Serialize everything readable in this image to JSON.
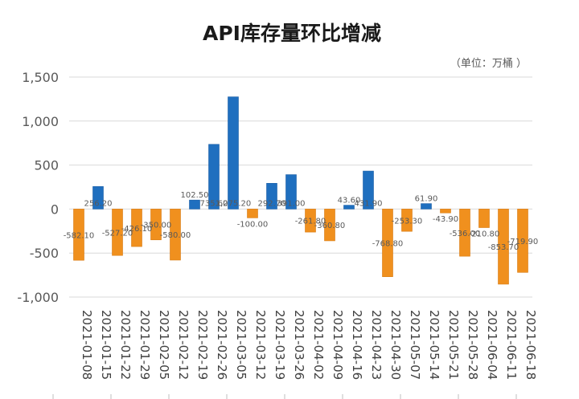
{
  "chart_data": {
    "type": "bar",
    "title": "API库存量环比增减",
    "unit_note": "（单位：万桶 ）",
    "xlabel": "",
    "ylabel": "",
    "ylim": [
      -1000,
      1500
    ],
    "yticks": [
      -1000,
      -500,
      0,
      500,
      1000,
      1500
    ],
    "ytick_labels": [
      "-1,000",
      "-500",
      "0",
      "500",
      "1,000",
      "1,500"
    ],
    "grid": true,
    "legend": "none",
    "colors": {
      "positive": "#1f6fbf",
      "negative": "#f0901e",
      "grid": "#d9d9d9",
      "text": "#595959"
    },
    "categories": [
      "2021-01-08",
      "2021-01-15",
      "2021-01-22",
      "2021-01-29",
      "2021-02-05",
      "2021-02-12",
      "2021-02-19",
      "2021-02-26",
      "2021-03-05",
      "2021-03-12",
      "2021-03-19",
      "2021-03-26",
      "2021-04-02",
      "2021-04-09",
      "2021-04-16",
      "2021-04-23",
      "2021-04-30",
      "2021-05-07",
      "2021-05-14",
      "2021-05-21",
      "2021-05-28",
      "2021-06-04",
      "2021-06-11",
      "2021-06-18"
    ],
    "values": [
      -582.1,
      256.2,
      -527.2,
      -426.1,
      -350.0,
      -580.0,
      102.5,
      735.6,
      1275.2,
      -100.0,
      292.7,
      391.0,
      -261.8,
      -360.8,
      43.6,
      431.9,
      -768.8,
      -253.3,
      61.9,
      -43.9,
      -536.0,
      -210.8,
      -853.7,
      -719.9
    ],
    "data_labels": [
      "-582.10",
      "256.20",
      "-527.20",
      "-426.10",
      "-350.00",
      "-580.00",
      "102.50",
      "735.60",
      "1,275.20",
      "-100.00",
      "292.70",
      "391.00",
      "-261.80",
      "-360.80",
      "43.60",
      "431.90",
      "-768.80",
      "-253.30",
      "61.90",
      "-43.90",
      "-536.00",
      "-210.80",
      "-853.70",
      "-719.90"
    ]
  }
}
